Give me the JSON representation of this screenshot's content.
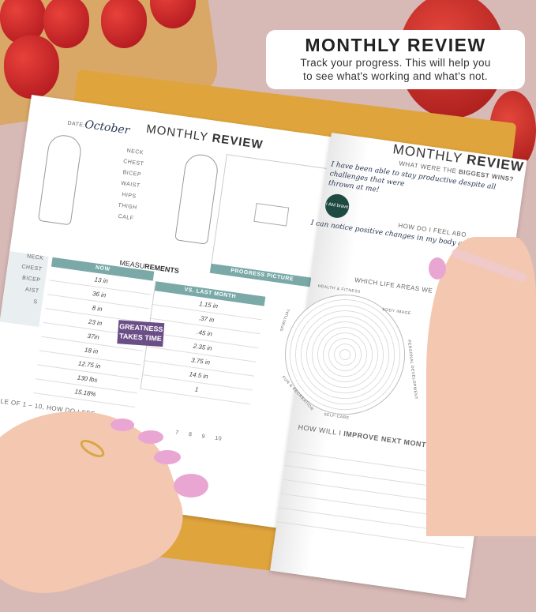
{
  "overlay": {
    "title": "MONTHLY REVIEW",
    "subtitle_line1": "Track your progress. This will help you",
    "subtitle_line2": "to see what's working and what's not."
  },
  "left_page": {
    "title_light": "MONTHLY",
    "title_bold": "REVIEW",
    "date_label": "DATE:",
    "date_value": "October",
    "body_labels": [
      "NECK",
      "CHEST",
      "BICEP",
      "WAIST",
      "HIPS",
      "THIGH",
      "CALF"
    ],
    "progress_picture": "PROGRESS PICTURE",
    "measurements_light": "MEASU",
    "measurements_bold": "REMENTS",
    "col_now": "NOW",
    "col_vs": "VS. LAST MONTH",
    "row_labels": [
      "NECK",
      "CHEST",
      "BICEP",
      "AIST",
      "S"
    ],
    "now_values": [
      "13 in",
      "36 in",
      "8 in",
      "23 in",
      "37in",
      "18 in",
      "12.75 in",
      "130 lbs",
      "15.18%"
    ],
    "vs_values": [
      "1.15 in",
      ".37 in",
      ".45 in",
      "2.35 in",
      "3.75 in",
      "14.5 in",
      "1"
    ],
    "sticker": {
      "line1": "GREATNESS",
      "line2": "TAKES TIME"
    },
    "scale_question": "LE OF 1 – 10, HOW DO I FEE",
    "scale_numbers": [
      "7",
      "8",
      "9",
      "10"
    ]
  },
  "right_page": {
    "title_light": "MONTHLY",
    "title_bold": "REVIEW",
    "q1_light": "WHAT WERE THE",
    "q1_bold": "BIGGEST WINS?",
    "a1_line1": "I have been able to stay productive despite all challenges that were",
    "a1_line2": "thrown at me!",
    "sticker": "I AM brave",
    "q2": "HOW DO I FEEL ABO",
    "a2": "I can notice positive changes in my body and a",
    "q3": "WHICH LIFE AREAS WE",
    "wheel_labels": [
      "HEALTH & FITNESS",
      "BODY IMAGE",
      "PERSONAL DEVELOPMENT",
      "SELF-CARE",
      "FUN & RECREATION",
      "SPIRITUAL"
    ],
    "q4_light": "HOW WILL I",
    "q4_bold": "IMPROVE NEXT MONTH?"
  },
  "colors": {
    "teal": "#7aa9a8",
    "sticker_purple": "#6b4e86",
    "sticker_green": "#1f4a42",
    "background": "#d7b9b6"
  }
}
